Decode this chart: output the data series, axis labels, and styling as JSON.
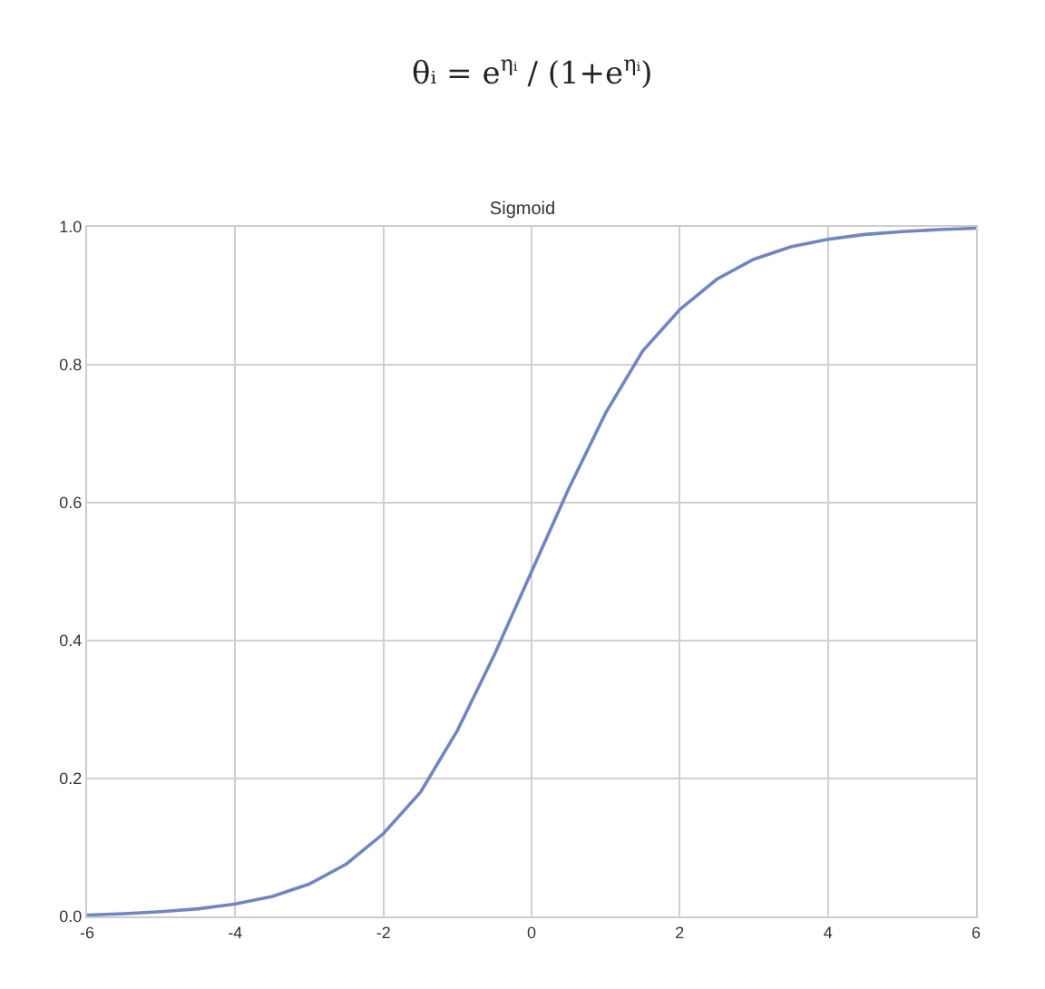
{
  "chart_data": {
    "type": "line",
    "title": "Sigmoid",
    "annotations": [
      "θᵢ = e$^{ηᵢ}$ / (1+e$^{ηᵢ}$)"
    ],
    "x": [
      -6,
      -5.5,
      -5,
      -4.5,
      -4,
      -3.5,
      -3,
      -2.5,
      -2,
      -1.5,
      -1,
      -0.5,
      0,
      0.5,
      1,
      1.5,
      2,
      2.5,
      3,
      3.5,
      4,
      4.5,
      5,
      5.5,
      6
    ],
    "series": [
      {
        "color": "#7186c0",
        "values": [
          0.002,
          0.004,
          0.007,
          0.011,
          0.018,
          0.029,
          0.047,
          0.076,
          0.12,
          0.18,
          0.27,
          0.38,
          0.5,
          0.62,
          0.73,
          0.82,
          0.88,
          0.924,
          0.953,
          0.971,
          0.982,
          0.989,
          0.993,
          0.996,
          0.998
        ]
      }
    ],
    "xlim": [
      -6,
      6
    ],
    "xticks": [
      -6,
      -4,
      -2,
      0,
      2,
      4,
      6
    ],
    "ylim": [
      0,
      1
    ],
    "yticks": [
      {
        "value": 0,
        "label": "0.0"
      },
      {
        "value": 0.2,
        "label": "0.2"
      },
      {
        "value": 0.4,
        "label": "0.4"
      },
      {
        "value": 0.6,
        "label": "0.6"
      },
      {
        "value": 0.8,
        "label": "0.8"
      },
      {
        "value": 1,
        "label": "1.0"
      }
    ],
    "grid": true,
    "marker": "none",
    "line_style": "solid"
  }
}
